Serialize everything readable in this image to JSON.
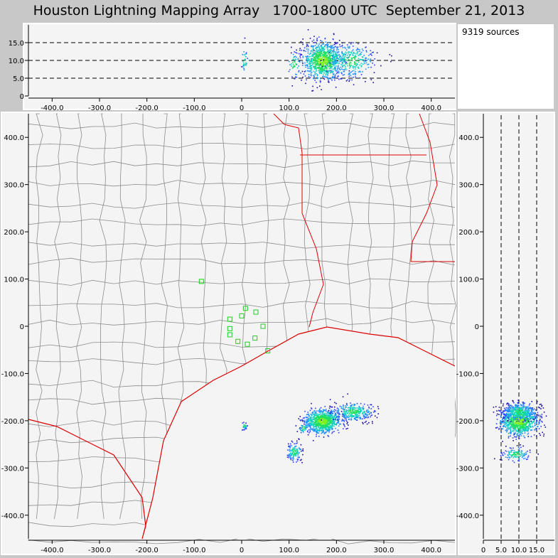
{
  "title": "Houston Lightning Mapping Array   1700-1800 UTC  September 21, 2013",
  "source_count": "9319 sources",
  "colors": {
    "background": "#c8c8c8",
    "panel": "#f4f4f4",
    "county": "#8c8c8c",
    "coast": "#dd0000",
    "station": "#22cc22"
  },
  "chart_data": [
    {
      "type": "scatter",
      "name_hint": "",
      "panel": "altitude-vs-east-west",
      "xlabel": "",
      "ylabel": "",
      "xlim": [
        -450,
        450
      ],
      "ylim": [
        0,
        20
      ],
      "xticks": [
        "-400.0",
        "-300.0",
        "-200.0",
        "-100.0",
        "0",
        "100.0",
        "200.0",
        "300.0",
        "400.0"
      ],
      "yticks": [
        "0",
        "5.0",
        "10.0",
        "15.0"
      ],
      "dashed_lines": [
        5,
        10,
        15
      ],
      "clusters": [
        {
          "x": 5,
          "y": 10,
          "sx": 3,
          "sy": 2,
          "n": 30
        },
        {
          "x": 170,
          "y": 10,
          "sx": 20,
          "sy": 2.5,
          "n": 900
        },
        {
          "x": 230,
          "y": 10,
          "sx": 25,
          "sy": 2.5,
          "n": 300
        },
        {
          "x": 110,
          "y": 9,
          "sx": 8,
          "sy": 2,
          "n": 60
        }
      ]
    },
    {
      "type": "scatter",
      "panel": "north-south-vs-east-west-map",
      "xlim": [
        -450,
        450
      ],
      "ylim": [
        -450,
        450
      ],
      "xticks": [
        "-400.0",
        "-300.0",
        "-200.0",
        "-100.0",
        "0",
        "100.0",
        "200.0",
        "300.0",
        "400.0"
      ],
      "yticks": [
        "400.0",
        "300.0",
        "200.0",
        "100.0",
        "0",
        "-100.0",
        "-200.0",
        "-300.0",
        "-400.0"
      ],
      "stations": [
        {
          "x": -85,
          "y": 95
        },
        {
          "x": -25,
          "y": 15
        },
        {
          "x": -25,
          "y": -5
        },
        {
          "x": -25,
          "y": -18
        },
        {
          "x": -8,
          "y": -32
        },
        {
          "x": 0,
          "y": 22
        },
        {
          "x": 8,
          "y": 38
        },
        {
          "x": 30,
          "y": 30
        },
        {
          "x": 45,
          "y": 0
        },
        {
          "x": 28,
          "y": -25
        },
        {
          "x": 12,
          "y": -38
        },
        {
          "x": 55,
          "y": -52
        }
      ],
      "clusters": [
        {
          "x": 170,
          "y": -200,
          "sx": 18,
          "sy": 12,
          "n": 900
        },
        {
          "x": 235,
          "y": -180,
          "sx": 22,
          "sy": 10,
          "n": 300
        },
        {
          "x": 110,
          "y": -265,
          "sx": 8,
          "sy": 10,
          "n": 120
        },
        {
          "x": 130,
          "y": -215,
          "sx": 6,
          "sy": 6,
          "n": 40
        },
        {
          "x": 5,
          "y": -210,
          "sx": 3,
          "sy": 4,
          "n": 30
        }
      ]
    },
    {
      "type": "scatter",
      "panel": "north-south-vs-altitude",
      "xlim": [
        0,
        20
      ],
      "ylim": [
        -450,
        450
      ],
      "xticks": [
        "0",
        "5.0",
        "10.0",
        "15.0"
      ],
      "yticks": [
        "400.0",
        "300.0",
        "200.0",
        "100.0",
        "0",
        "-100.0",
        "-200.0",
        "-300.0",
        "-400.0"
      ],
      "dashed_lines": [
        5,
        10,
        15
      ],
      "clusters": [
        {
          "x": 10,
          "y": -200,
          "sx": 2.5,
          "sy": 15,
          "n": 900
        },
        {
          "x": 10,
          "y": -180,
          "sx": 2.5,
          "sy": 10,
          "n": 300
        },
        {
          "x": 9,
          "y": -270,
          "sx": 2,
          "sy": 8,
          "n": 120
        }
      ]
    }
  ]
}
